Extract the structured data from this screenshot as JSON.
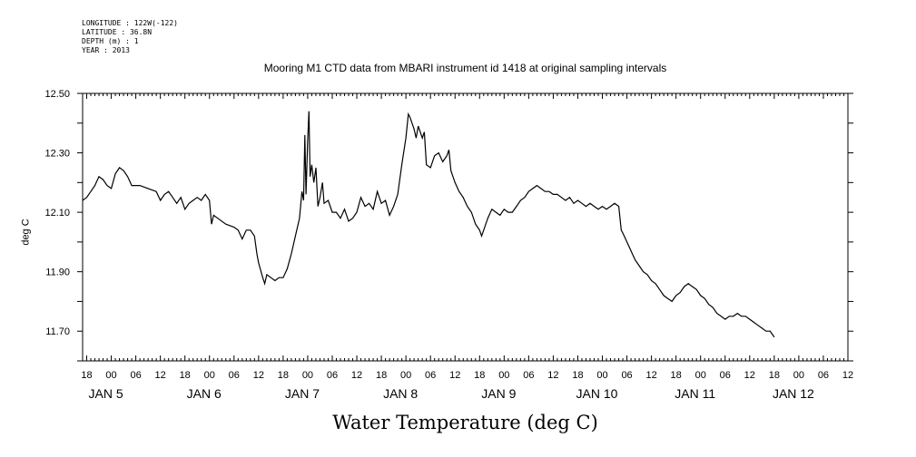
{
  "meta": {
    "longitude": "LONGITUDE : 122W(-122)",
    "latitude": "LATITUDE : 36.8N",
    "depth": "DEPTH (m) : 1",
    "year": "YEAR : 2013"
  },
  "chart_data": {
    "type": "line",
    "title": "Mooring M1 CTD data from MBARI instrument id 1418 at original sampling intervals",
    "xlabel": "Water Temperature (deg C)",
    "ylabel": "deg C",
    "ylim": [
      11.6,
      12.5
    ],
    "y_ticks": [
      "12.50",
      "12.30",
      "12.10",
      "11.90",
      "11.70"
    ],
    "x_hours_labels": [
      "18",
      "00",
      "06",
      "12",
      "18",
      "00",
      "06",
      "12",
      "18",
      "00",
      "06",
      "12",
      "18",
      "00",
      "06",
      "12",
      "18",
      "00",
      "06",
      "12",
      "18",
      "00",
      "06",
      "12",
      "18",
      "00",
      "06",
      "12",
      "18",
      "00",
      "06",
      "12"
    ],
    "day_labels": [
      "JAN  5",
      "JAN  6",
      "JAN  7",
      "JAN  8",
      "JAN  9",
      "JAN 10",
      "JAN 11",
      "JAN 12"
    ],
    "x_range_hours": [
      17,
      204
    ],
    "series": [
      {
        "values": [
          [
            17,
            12.14
          ],
          [
            18,
            12.15
          ],
          [
            19,
            12.17
          ],
          [
            20,
            12.19
          ],
          [
            21,
            12.22
          ],
          [
            22,
            12.21
          ],
          [
            23,
            12.19
          ],
          [
            24,
            12.18
          ],
          [
            25,
            12.23
          ],
          [
            26,
            12.25
          ],
          [
            27,
            12.24
          ],
          [
            28,
            12.22
          ],
          [
            29,
            12.19
          ],
          [
            31,
            12.19
          ],
          [
            33,
            12.18
          ],
          [
            35,
            12.17
          ],
          [
            36,
            12.14
          ],
          [
            37,
            12.16
          ],
          [
            38,
            12.17
          ],
          [
            39,
            12.15
          ],
          [
            40,
            12.13
          ],
          [
            41,
            12.15
          ],
          [
            42,
            12.11
          ],
          [
            43,
            12.13
          ],
          [
            44,
            12.14
          ],
          [
            45,
            12.15
          ],
          [
            46,
            12.14
          ],
          [
            47,
            12.16
          ],
          [
            48,
            12.14
          ],
          [
            48.5,
            12.06
          ],
          [
            49,
            12.09
          ],
          [
            50,
            12.08
          ],
          [
            52,
            12.06
          ],
          [
            54,
            12.05
          ],
          [
            55,
            12.04
          ],
          [
            56,
            12.01
          ],
          [
            57,
            12.04
          ],
          [
            58,
            12.04
          ],
          [
            59,
            12.02
          ],
          [
            59.6,
            11.96
          ],
          [
            60,
            11.93
          ],
          [
            61,
            11.88
          ],
          [
            61.5,
            11.86
          ],
          [
            62,
            11.89
          ],
          [
            63,
            11.88
          ],
          [
            64,
            11.87
          ],
          [
            65,
            11.88
          ],
          [
            66,
            11.88
          ],
          [
            67,
            11.91
          ],
          [
            68,
            11.96
          ],
          [
            69,
            12.02
          ],
          [
            70,
            12.08
          ],
          [
            70.6,
            12.17
          ],
          [
            71,
            12.14
          ],
          [
            71.3,
            12.36
          ],
          [
            71.6,
            12.16
          ],
          [
            72,
            12.34
          ],
          [
            72.3,
            12.44
          ],
          [
            72.6,
            12.22
          ],
          [
            73,
            12.26
          ],
          [
            73.5,
            12.2
          ],
          [
            74,
            12.25
          ],
          [
            74.5,
            12.12
          ],
          [
            75,
            12.15
          ],
          [
            75.6,
            12.2
          ],
          [
            76,
            12.13
          ],
          [
            77,
            12.14
          ],
          [
            78,
            12.1
          ],
          [
            79,
            12.1
          ],
          [
            80,
            12.08
          ],
          [
            81,
            12.11
          ],
          [
            82,
            12.07
          ],
          [
            83,
            12.08
          ],
          [
            84,
            12.1
          ],
          [
            85,
            12.15
          ],
          [
            86,
            12.12
          ],
          [
            87,
            12.13
          ],
          [
            88,
            12.11
          ],
          [
            89,
            12.17
          ],
          [
            90,
            12.13
          ],
          [
            91,
            12.14
          ],
          [
            92,
            12.09
          ],
          [
            93,
            12.12
          ],
          [
            94,
            12.16
          ],
          [
            95,
            12.26
          ],
          [
            96,
            12.35
          ],
          [
            96.6,
            12.43
          ],
          [
            97,
            12.42
          ],
          [
            98,
            12.38
          ],
          [
            98.5,
            12.35
          ],
          [
            99,
            12.39
          ],
          [
            100,
            12.35
          ],
          [
            100.5,
            12.37
          ],
          [
            101,
            12.26
          ],
          [
            102,
            12.25
          ],
          [
            103,
            12.29
          ],
          [
            104,
            12.3
          ],
          [
            105,
            12.27
          ],
          [
            106,
            12.29
          ],
          [
            106.5,
            12.31
          ],
          [
            107,
            12.24
          ],
          [
            108,
            12.2
          ],
          [
            109,
            12.17
          ],
          [
            110,
            12.15
          ],
          [
            111,
            12.12
          ],
          [
            112,
            12.1
          ],
          [
            113,
            12.06
          ],
          [
            114,
            12.04
          ],
          [
            114.5,
            12.02
          ],
          [
            115,
            12.04
          ],
          [
            116,
            12.08
          ],
          [
            117,
            12.11
          ],
          [
            118,
            12.1
          ],
          [
            119,
            12.09
          ],
          [
            120,
            12.11
          ],
          [
            121,
            12.1
          ],
          [
            122,
            12.1
          ],
          [
            123,
            12.12
          ],
          [
            124,
            12.14
          ],
          [
            125,
            12.15
          ],
          [
            126,
            12.17
          ],
          [
            127,
            12.18
          ],
          [
            128,
            12.19
          ],
          [
            129,
            12.18
          ],
          [
            130,
            12.17
          ],
          [
            131,
            12.17
          ],
          [
            132,
            12.16
          ],
          [
            133,
            12.16
          ],
          [
            134,
            12.15
          ],
          [
            135,
            12.14
          ],
          [
            136,
            12.15
          ],
          [
            137,
            12.13
          ],
          [
            138,
            12.14
          ],
          [
            139,
            12.13
          ],
          [
            140,
            12.12
          ],
          [
            141,
            12.13
          ],
          [
            142,
            12.12
          ],
          [
            143,
            12.11
          ],
          [
            144,
            12.12
          ],
          [
            145,
            12.11
          ],
          [
            146,
            12.12
          ],
          [
            147,
            12.13
          ],
          [
            148,
            12.12
          ],
          [
            148.6,
            12.04
          ],
          [
            149,
            12.03
          ],
          [
            150,
            12.0
          ],
          [
            151,
            11.97
          ],
          [
            152,
            11.94
          ],
          [
            153,
            11.92
          ],
          [
            154,
            11.9
          ],
          [
            155,
            11.89
          ],
          [
            156,
            11.87
          ],
          [
            157,
            11.86
          ],
          [
            158,
            11.84
          ],
          [
            159,
            11.82
          ],
          [
            160,
            11.81
          ],
          [
            161,
            11.8
          ],
          [
            162,
            11.82
          ],
          [
            163,
            11.83
          ],
          [
            164,
            11.85
          ],
          [
            165,
            11.86
          ],
          [
            166,
            11.85
          ],
          [
            167,
            11.84
          ],
          [
            168,
            11.82
          ],
          [
            169,
            11.81
          ],
          [
            170,
            11.79
          ],
          [
            171,
            11.78
          ],
          [
            172,
            11.76
          ],
          [
            173,
            11.75
          ],
          [
            174,
            11.74
          ],
          [
            175,
            11.75
          ],
          [
            176,
            11.75
          ],
          [
            177,
            11.76
          ],
          [
            178,
            11.75
          ],
          [
            179,
            11.75
          ],
          [
            180,
            11.74
          ],
          [
            181,
            11.73
          ],
          [
            182,
            11.72
          ],
          [
            183,
            11.71
          ],
          [
            184,
            11.7
          ],
          [
            185,
            11.7
          ],
          [
            185.5,
            11.69
          ],
          [
            186,
            11.68
          ]
        ]
      }
    ]
  }
}
